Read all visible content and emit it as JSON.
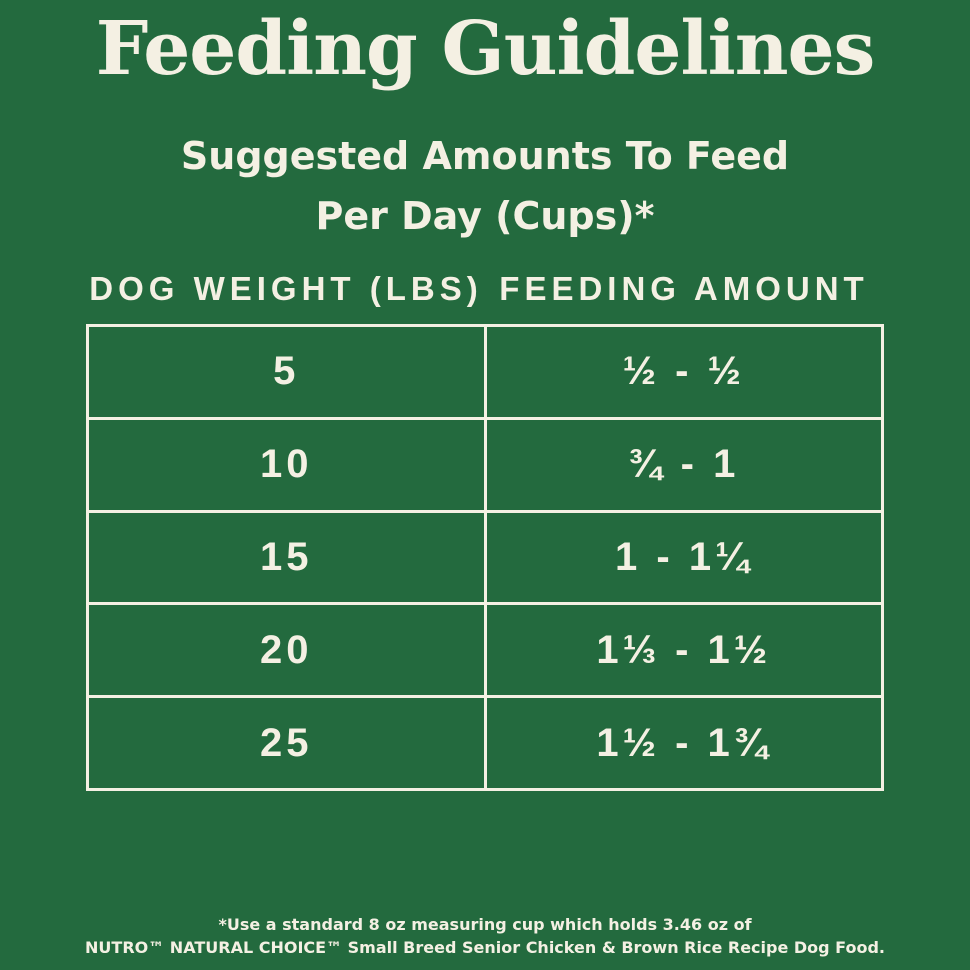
{
  "header": {
    "title": "Feeding Guidelines",
    "subtitle_lines": [
      "Suggested Amounts To Feed",
      "Per Day (Cups)*"
    ]
  },
  "table": {
    "columns": [
      "DOG WEIGHT (LBS)",
      "FEEDING AMOUNT"
    ],
    "rows": [
      [
        "5",
        "½ - ½"
      ],
      [
        "10",
        "¾ - 1"
      ],
      [
        "15",
        "1 - 1¼"
      ],
      [
        "20",
        "1⅓ - 1½"
      ],
      [
        "25",
        "1½ - 1¾"
      ]
    ]
  },
  "footnote": [
    "*Use a standard 8 oz measuring cup which holds 3.46 oz of",
    "NUTRO™ NATURAL CHOICE™ Small Breed Senior Chicken & Brown Rice Recipe Dog Food."
  ]
}
